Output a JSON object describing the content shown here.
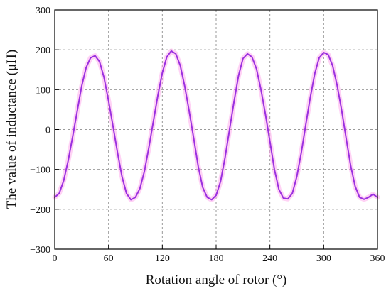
{
  "chart_data": {
    "type": "line",
    "xlabel": "Rotation angle of rotor (°)",
    "ylabel": "The value of inductance (μH)",
    "xlim": [
      0,
      360
    ],
    "ylim": [
      -300,
      300
    ],
    "x_ticks": [
      0,
      60,
      120,
      180,
      240,
      300,
      360
    ],
    "y_ticks": [
      -300,
      -200,
      -100,
      0,
      100,
      200,
      300
    ],
    "x_tick_labels": [
      "0",
      "60",
      "120",
      "180",
      "240",
      "300",
      "360"
    ],
    "y_tick_labels": [
      "−300",
      "−200",
      "−100",
      "0",
      "100",
      "200",
      "300"
    ],
    "grid": true,
    "legend": "none",
    "series": [
      {
        "color": "#9b30e0",
        "halo_color": "#ff9be8",
        "x": [
          0,
          5,
          10,
          15,
          20,
          25,
          30,
          35,
          40,
          45,
          50,
          55,
          60,
          65,
          70,
          75,
          80,
          85,
          90,
          95,
          100,
          105,
          110,
          115,
          120,
          125,
          130,
          135,
          140,
          145,
          150,
          155,
          160,
          165,
          170,
          175,
          180,
          185,
          190,
          195,
          200,
          205,
          210,
          215,
          220,
          225,
          230,
          235,
          240,
          245,
          250,
          255,
          260,
          265,
          270,
          275,
          280,
          285,
          290,
          295,
          300,
          305,
          310,
          315,
          320,
          325,
          330,
          335,
          340,
          345,
          350,
          355,
          360
        ],
        "y": [
          -170,
          -160,
          -128,
          -78,
          -18,
          45,
          108,
          155,
          180,
          185,
          170,
          130,
          72,
          8,
          -58,
          -118,
          -160,
          -176,
          -170,
          -148,
          -105,
          -45,
          20,
          85,
          142,
          182,
          197,
          190,
          160,
          108,
          45,
          -22,
          -92,
          -145,
          -170,
          -176,
          -165,
          -130,
          -70,
          0,
          70,
          135,
          178,
          190,
          182,
          152,
          100,
          38,
          -30,
          -100,
          -150,
          -172,
          -174,
          -160,
          -118,
          -58,
          12,
          80,
          140,
          180,
          193,
          188,
          160,
          110,
          48,
          -22,
          -90,
          -142,
          -170,
          -175,
          -170,
          -162,
          -170
        ]
      }
    ]
  }
}
